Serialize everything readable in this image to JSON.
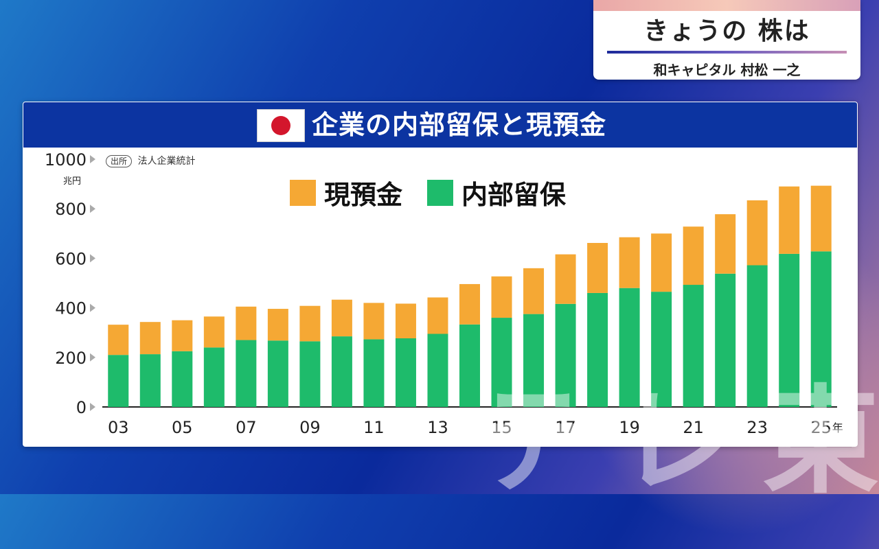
{
  "badge": {
    "title": "きょうの 株は",
    "subtitle": "和キャピタル 村松 一之"
  },
  "panel": {
    "title": "企業の内部留保と現預金"
  },
  "source": {
    "tag": "出所",
    "name": "法人企業統計"
  },
  "watermark": "テレ東",
  "colors": {
    "cash": "#f5a834",
    "retained": "#1ebb6b",
    "header": "#0c34a1"
  },
  "chart_data": {
    "type": "bar",
    "stacked": true,
    "unit_label": "兆円",
    "year_suffix": "年",
    "ylim": [
      0,
      1000
    ],
    "yticks": [
      0,
      200,
      400,
      600,
      800,
      1000
    ],
    "categories": [
      "03",
      "04",
      "05",
      "06",
      "07",
      "08",
      "09",
      "10",
      "11",
      "12",
      "13",
      "14",
      "15",
      "16",
      "17",
      "18",
      "19",
      "20",
      "21",
      "22",
      "23",
      "24",
      "25"
    ],
    "xtick_labels": [
      "03",
      "05",
      "07",
      "09",
      "11",
      "13",
      "15",
      "17",
      "19",
      "21",
      "23",
      "25"
    ],
    "series": [
      {
        "name": "内部留保",
        "color": "#1ebb6b",
        "values": [
          210,
          213,
          225,
          240,
          270,
          268,
          265,
          285,
          273,
          277,
          295,
          333,
          360,
          375,
          416,
          460,
          480,
          465,
          493,
          538,
          572,
          618,
          628
        ]
      },
      {
        "name": "現預金",
        "color": "#f5a834",
        "values": [
          122,
          130,
          125,
          125,
          135,
          128,
          143,
          148,
          147,
          140,
          147,
          163,
          167,
          185,
          200,
          202,
          205,
          235,
          235,
          240,
          262,
          272,
          265
        ]
      }
    ],
    "legend": [
      "現預金",
      "内部留保"
    ]
  }
}
